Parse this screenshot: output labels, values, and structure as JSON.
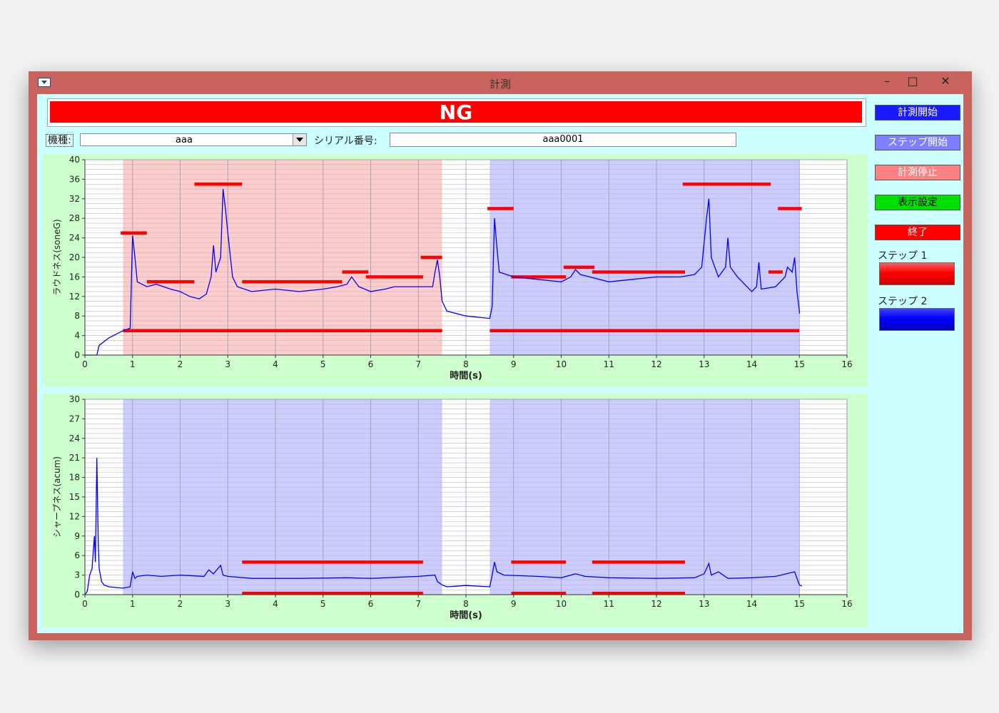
{
  "window": {
    "title": "計測",
    "minimize": "–",
    "maximize": "□",
    "close": "✕"
  },
  "status": {
    "text": "NG",
    "color": "#ff0000"
  },
  "form": {
    "model_label": "機種:",
    "model_value": "aaa",
    "serial_label": "シリアル番号:",
    "serial_value": "aaa0001"
  },
  "buttons": {
    "start_measure": "計測開始",
    "step_start": "ステップ開始",
    "stop_measure": "計測停止",
    "display_settings": "表示設定",
    "exit": "終了"
  },
  "legend": {
    "step1_label": "ステップ 1",
    "step1_color": "#ff0000",
    "step2_label": "ステップ 2",
    "step2_color": "#0000ff"
  },
  "chart_data": [
    {
      "type": "line",
      "title": "",
      "xlabel": "時間(s)",
      "ylabel": "ラウドネス(soneG)",
      "xlim": [
        0,
        16
      ],
      "ylim": [
        0,
        40
      ],
      "x_ticks": [
        0,
        1,
        2,
        3,
        4,
        5,
        6,
        7,
        8,
        9,
        10,
        11,
        12,
        13,
        14,
        15,
        16
      ],
      "y_ticks": [
        0,
        4,
        8,
        12,
        16,
        20,
        24,
        28,
        32,
        36,
        40
      ],
      "grid": true,
      "step_regions": [
        {
          "step": 1,
          "x": [
            0.8,
            7.5
          ],
          "color": "#ff0000"
        },
        {
          "step": 2,
          "x": [
            8.5,
            15.0
          ],
          "color": "#0000ff"
        }
      ],
      "limit_lines": [
        {
          "x": [
            0.8,
            7.5
          ],
          "y": 5
        },
        {
          "x": [
            8.5,
            15.0
          ],
          "y": 5
        },
        {
          "x": [
            0.75,
            1.3
          ],
          "y": 25
        },
        {
          "x": [
            1.3,
            2.3
          ],
          "y": 15
        },
        {
          "x": [
            2.3,
            3.3
          ],
          "y": 35
        },
        {
          "x": [
            3.3,
            5.4
          ],
          "y": 15
        },
        {
          "x": [
            5.4,
            5.95
          ],
          "y": 17
        },
        {
          "x": [
            5.9,
            7.1
          ],
          "y": 16
        },
        {
          "x": [
            7.05,
            7.5
          ],
          "y": 20
        },
        {
          "x": [
            8.45,
            9.0
          ],
          "y": 30
        },
        {
          "x": [
            8.95,
            10.1
          ],
          "y": 16
        },
        {
          "x": [
            10.05,
            10.7
          ],
          "y": 18
        },
        {
          "x": [
            10.65,
            12.6
          ],
          "y": 17
        },
        {
          "x": [
            12.55,
            14.4
          ],
          "y": 35
        },
        {
          "x": [
            14.35,
            14.65
          ],
          "y": 17
        },
        {
          "x": [
            14.55,
            15.05
          ],
          "y": 30
        }
      ],
      "series": [
        {
          "color": "#0000ff",
          "points": [
            [
              0,
              0
            ],
            [
              0.25,
              0
            ],
            [
              0.3,
              2
            ],
            [
              0.5,
              3.5
            ],
            [
              0.8,
              5
            ],
            [
              0.95,
              5.5
            ],
            [
              1.0,
              24.5
            ],
            [
              1.05,
              20
            ],
            [
              1.1,
              15
            ],
            [
              1.3,
              14
            ],
            [
              1.5,
              14.5
            ],
            [
              1.8,
              13.5
            ],
            [
              2.0,
              13
            ],
            [
              2.2,
              12
            ],
            [
              2.4,
              11.5
            ],
            [
              2.55,
              12.5
            ],
            [
              2.65,
              16
            ],
            [
              2.7,
              22.5
            ],
            [
              2.75,
              17
            ],
            [
              2.85,
              20
            ],
            [
              2.9,
              34
            ],
            [
              2.95,
              30
            ],
            [
              3.0,
              25
            ],
            [
              3.1,
              16
            ],
            [
              3.2,
              14
            ],
            [
              3.5,
              13
            ],
            [
              4.0,
              13.5
            ],
            [
              4.5,
              13
            ],
            [
              5.0,
              13.5
            ],
            [
              5.3,
              14
            ],
            [
              5.5,
              14.5
            ],
            [
              5.6,
              16
            ],
            [
              5.75,
              14
            ],
            [
              6.0,
              13
            ],
            [
              6.3,
              13.5
            ],
            [
              6.5,
              14
            ],
            [
              7.0,
              14
            ],
            [
              7.3,
              14
            ],
            [
              7.35,
              17
            ],
            [
              7.4,
              19.5
            ],
            [
              7.45,
              16
            ],
            [
              7.5,
              11
            ],
            [
              7.6,
              9
            ],
            [
              8.0,
              8
            ],
            [
              8.5,
              7.5
            ],
            [
              8.55,
              10
            ],
            [
              8.6,
              28
            ],
            [
              8.65,
              22
            ],
            [
              8.7,
              17
            ],
            [
              9.0,
              16
            ],
            [
              9.5,
              15.5
            ],
            [
              10.0,
              15
            ],
            [
              10.2,
              16
            ],
            [
              10.3,
              17.5
            ],
            [
              10.4,
              16.5
            ],
            [
              10.6,
              16
            ],
            [
              11.0,
              15
            ],
            [
              11.5,
              15.5
            ],
            [
              12.0,
              16
            ],
            [
              12.5,
              16
            ],
            [
              12.8,
              16.5
            ],
            [
              12.95,
              18
            ],
            [
              13.05,
              28
            ],
            [
              13.1,
              32
            ],
            [
              13.15,
              20
            ],
            [
              13.3,
              16
            ],
            [
              13.45,
              18
            ],
            [
              13.5,
              24
            ],
            [
              13.55,
              18
            ],
            [
              13.7,
              16
            ],
            [
              13.9,
              14
            ],
            [
              14.0,
              13
            ],
            [
              14.1,
              14
            ],
            [
              14.15,
              19
            ],
            [
              14.2,
              13.5
            ],
            [
              14.5,
              14
            ],
            [
              14.7,
              16
            ],
            [
              14.75,
              18
            ],
            [
              14.85,
              17
            ],
            [
              14.9,
              20
            ],
            [
              14.95,
              13
            ],
            [
              15.0,
              9
            ],
            [
              15.0,
              8.5
            ]
          ]
        }
      ]
    },
    {
      "type": "line",
      "title": "",
      "xlabel": "時間(s)",
      "ylabel": "シャープネス(acum)",
      "xlim": [
        0,
        16
      ],
      "ylim": [
        0,
        30
      ],
      "x_ticks": [
        0,
        1,
        2,
        3,
        4,
        5,
        6,
        7,
        8,
        9,
        10,
        11,
        12,
        13,
        14,
        15,
        16
      ],
      "y_ticks": [
        0,
        3,
        6,
        9,
        12,
        15,
        18,
        21,
        24,
        27,
        30
      ],
      "grid": true,
      "step_regions": [
        {
          "step": 2,
          "x": [
            0.8,
            7.5
          ],
          "color": "#0000ff"
        },
        {
          "step": 2,
          "x": [
            8.5,
            15.0
          ],
          "color": "#0000ff"
        }
      ],
      "limit_lines": [
        {
          "x": [
            3.3,
            7.1
          ],
          "y": 5
        },
        {
          "x": [
            3.3,
            7.1
          ],
          "y": 0.2
        },
        {
          "x": [
            8.95,
            10.1
          ],
          "y": 5
        },
        {
          "x": [
            8.95,
            10.1
          ],
          "y": 0.2
        },
        {
          "x": [
            10.65,
            12.6
          ],
          "y": 5
        },
        {
          "x": [
            10.65,
            12.6
          ],
          "y": 0.2
        }
      ],
      "series": [
        {
          "color": "#0000ff",
          "points": [
            [
              0,
              0
            ],
            [
              0.05,
              0.5
            ],
            [
              0.1,
              3
            ],
            [
              0.15,
              4
            ],
            [
              0.17,
              6
            ],
            [
              0.2,
              9
            ],
            [
              0.22,
              5
            ],
            [
              0.25,
              21
            ],
            [
              0.28,
              8
            ],
            [
              0.3,
              4
            ],
            [
              0.35,
              2
            ],
            [
              0.4,
              1.5
            ],
            [
              0.5,
              1.2
            ],
            [
              0.8,
              1
            ],
            [
              0.95,
              1.2
            ],
            [
              1.0,
              3.5
            ],
            [
              1.05,
              2.5
            ],
            [
              1.1,
              2.8
            ],
            [
              1.3,
              3
            ],
            [
              1.6,
              2.8
            ],
            [
              2.0,
              3
            ],
            [
              2.5,
              2.8
            ],
            [
              2.6,
              3.8
            ],
            [
              2.7,
              3.2
            ],
            [
              2.85,
              4.5
            ],
            [
              2.9,
              3
            ],
            [
              3.0,
              2.8
            ],
            [
              3.5,
              2.5
            ],
            [
              4.5,
              2.5
            ],
            [
              5.5,
              2.6
            ],
            [
              6.0,
              2.5
            ],
            [
              7.0,
              2.8
            ],
            [
              7.35,
              3
            ],
            [
              7.4,
              2
            ],
            [
              7.5,
              1.5
            ],
            [
              7.6,
              1.2
            ],
            [
              8.0,
              1.4
            ],
            [
              8.5,
              1.2
            ],
            [
              8.55,
              3
            ],
            [
              8.6,
              5
            ],
            [
              8.65,
              3.5
            ],
            [
              8.8,
              3
            ],
            [
              9.5,
              2.8
            ],
            [
              10.0,
              2.6
            ],
            [
              10.3,
              3.2
            ],
            [
              10.5,
              2.8
            ],
            [
              11.0,
              2.6
            ],
            [
              12.0,
              2.5
            ],
            [
              12.8,
              2.6
            ],
            [
              13.0,
              3.2
            ],
            [
              13.1,
              4.8
            ],
            [
              13.15,
              3
            ],
            [
              13.3,
              3.5
            ],
            [
              13.5,
              2.5
            ],
            [
              14.0,
              2.6
            ],
            [
              14.5,
              2.8
            ],
            [
              14.9,
              3.5
            ],
            [
              15.0,
              1.5
            ],
            [
              15.05,
              1.3
            ]
          ]
        }
      ]
    }
  ]
}
